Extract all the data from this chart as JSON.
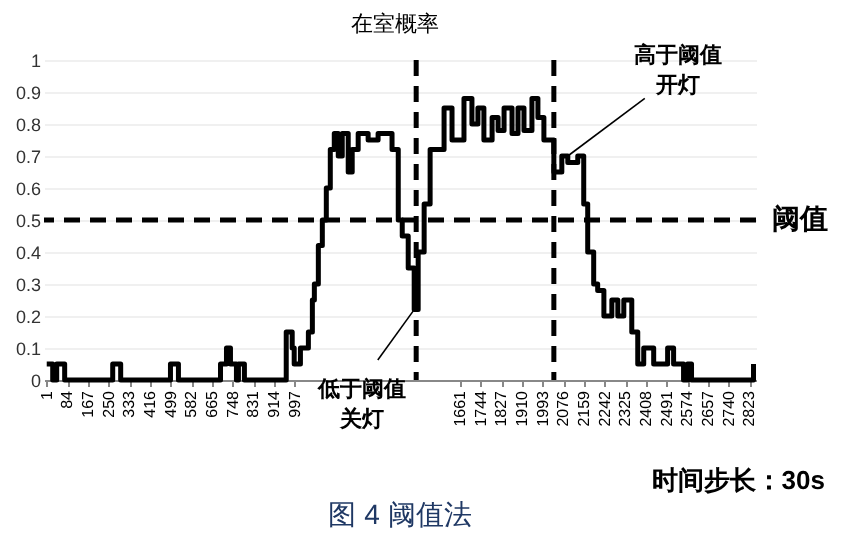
{
  "chart_data": {
    "type": "step",
    "title": "图 4 阈值法",
    "ylabel": "在室概率",
    "xlabel": "时间步长：30s",
    "x": [
      1,
      25,
      41,
      73,
      266,
      298,
      498,
      530,
      699,
      723,
      739,
      763,
      771,
      795,
      963,
      987,
      995,
      1020,
      1052,
      1068,
      1076,
      1092,
      1108,
      1124,
      1140,
      1156,
      1172,
      1188,
      1212,
      1228,
      1252,
      1292,
      1332,
      1388,
      1413,
      1429,
      1453,
      1477,
      1493,
      1517,
      1541,
      1597,
      1629,
      1677,
      1709,
      1733,
      1757,
      1790,
      1814,
      1838,
      1870,
      1894,
      1918,
      1950,
      1974,
      1998,
      2038,
      2070,
      2094,
      2134,
      2158,
      2174,
      2198,
      2214,
      2239,
      2271,
      2295,
      2319,
      2351,
      2375,
      2399,
      2439,
      2495,
      2519,
      2559,
      2575,
      2591,
      2840
    ],
    "series": [
      {
        "color": "#000000",
        "values": [
          0.05,
          0,
          0.05,
          0,
          0.05,
          0,
          0.05,
          0,
          0.05,
          0.1,
          0.05,
          0,
          0.05,
          0,
          0.15,
          0.1,
          0.05,
          0.1,
          0.15,
          0.25,
          0.3,
          0.42,
          0.5,
          0.6,
          0.72,
          0.77,
          0.7,
          0.77,
          0.65,
          0.72,
          0.77,
          0.75,
          0.77,
          0.72,
          0.5,
          0.45,
          0.35,
          0.22,
          0.4,
          0.55,
          0.72,
          0.85,
          0.75,
          0.88,
          0.8,
          0.85,
          0.75,
          0.82,
          0.78,
          0.85,
          0.77,
          0.85,
          0.78,
          0.88,
          0.82,
          0.75,
          0.65,
          0.7,
          0.68,
          0.7,
          0.55,
          0.4,
          0.3,
          0.28,
          0.2,
          0.25,
          0.2,
          0.25,
          0.15,
          0.05,
          0.1,
          0.05,
          0.1,
          0.05,
          0,
          0.05,
          0,
          0.05
        ]
      }
    ],
    "xlim": [
      -10,
      2850
    ],
    "xticks": [
      1,
      84,
      167,
      250,
      333,
      416,
      499,
      582,
      665,
      748,
      831,
      914,
      997,
      1661,
      1744,
      1827,
      1910,
      1993,
      2076,
      2159,
      2242,
      2325,
      2408,
      2491,
      2574,
      2657,
      2740,
      2823
    ],
    "ylim": [
      0,
      1
    ],
    "yticks": [
      0,
      0.1,
      0.2,
      0.3,
      0.4,
      0.5,
      0.6,
      0.7,
      0.8,
      0.9,
      1
    ],
    "grid": "y",
    "line_style": "solid",
    "marker": "none",
    "ref_lines": [
      {
        "axis": "y",
        "value": 0.5,
        "label": "阈值",
        "line_style": "dashed",
        "color": "#000000"
      },
      {
        "axis": "x",
        "value": 1485,
        "line_style": "dashed",
        "color": "#000000"
      },
      {
        "axis": "x",
        "value": 2038,
        "line_style": "dashed",
        "color": "#000000"
      }
    ],
    "annotations": [
      {
        "text": "低于阈值关灯",
        "x": 1477,
        "y": 0.22
      },
      {
        "text": "高于阈值开灯",
        "x": 2094,
        "y": 0.7
      }
    ]
  }
}
